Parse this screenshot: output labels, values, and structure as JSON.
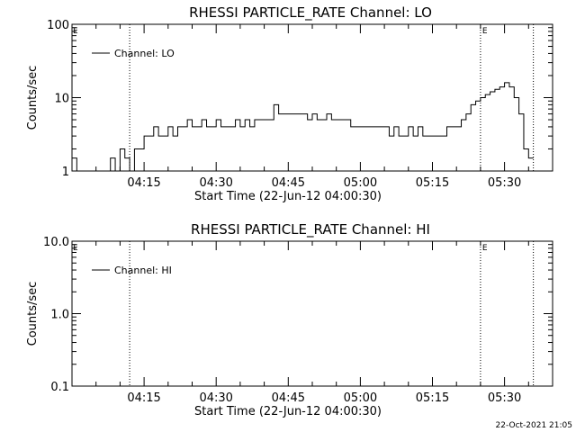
{
  "stamp": "22-Oct-2021 21:05",
  "chart_data": [
    {
      "type": "line",
      "title": "RHESSI PARTICLE_RATE Channel: LO",
      "xlabel": "Start Time (22-Jun-12 04:00:30)",
      "ylabel": "Counts/sec",
      "yscale": "log",
      "ylim": [
        1,
        100
      ],
      "y_ticks": [
        "100",
        "10",
        "1"
      ],
      "xlim": [
        "04:00",
        "05:40"
      ],
      "x_ticks": [
        "04:15",
        "04:30",
        "04:45",
        "05:00",
        "05:15",
        "05:30"
      ],
      "legend": {
        "position": "top-left",
        "label": "Channel: LO"
      },
      "markers": [
        {
          "time": "04:12",
          "label": ""
        },
        {
          "time": "05:25",
          "label": "E"
        },
        {
          "time": "05:36",
          "label": ""
        }
      ],
      "corner_labels": [
        "E"
      ],
      "series": [
        {
          "name": "Channel: LO",
          "x": [
            "04:00",
            "04:01",
            "04:02",
            "04:03",
            "04:04",
            "04:05",
            "04:06",
            "04:07",
            "04:08",
            "04:09",
            "04:10",
            "04:11",
            "04:12",
            "04:13",
            "04:14",
            "04:15",
            "04:16",
            "04:17",
            "04:18",
            "04:19",
            "04:20",
            "04:21",
            "04:22",
            "04:23",
            "04:24",
            "04:25",
            "04:26",
            "04:27",
            "04:28",
            "04:29",
            "04:30",
            "04:31",
            "04:32",
            "04:33",
            "04:34",
            "04:35",
            "04:36",
            "04:37",
            "04:38",
            "04:39",
            "04:40",
            "04:41",
            "04:42",
            "04:43",
            "04:44",
            "04:45",
            "04:46",
            "04:47",
            "04:48",
            "04:49",
            "04:50",
            "04:51",
            "04:52",
            "04:53",
            "04:54",
            "04:55",
            "04:56",
            "04:57",
            "04:58",
            "04:59",
            "05:00",
            "05:01",
            "05:02",
            "05:03",
            "05:04",
            "05:05",
            "05:06",
            "05:07",
            "05:08",
            "05:09",
            "05:10",
            "05:11",
            "05:12",
            "05:13",
            "05:14",
            "05:15",
            "05:16",
            "05:17",
            "05:18",
            "05:19",
            "05:20",
            "05:21",
            "05:22",
            "05:23",
            "05:24",
            "05:25",
            "05:26",
            "05:27",
            "05:28",
            "05:29",
            "05:30",
            "05:31",
            "05:32",
            "05:33",
            "05:34",
            "05:35"
          ],
          "y": [
            1.5,
            1,
            1,
            1,
            1,
            1,
            1,
            1,
            1.5,
            1,
            2,
            1.5,
            1,
            2,
            2,
            3,
            3,
            4,
            3,
            3,
            4,
            3,
            4,
            4,
            5,
            4,
            4,
            5,
            4,
            4,
            5,
            4,
            4,
            4,
            5,
            4,
            5,
            4,
            5,
            5,
            5,
            5,
            8,
            6,
            6,
            6,
            6,
            6,
            6,
            5,
            6,
            5,
            5,
            6,
            5,
            5,
            5,
            5,
            4,
            4,
            4,
            4,
            4,
            4,
            4,
            4,
            3,
            4,
            3,
            3,
            4,
            3,
            4,
            3,
            3,
            3,
            3,
            3,
            4,
            4,
            4,
            5,
            6,
            8,
            9,
            10,
            11,
            12,
            13,
            14,
            16,
            14,
            10,
            6,
            2,
            1.5
          ]
        }
      ]
    },
    {
      "type": "line",
      "title": "RHESSI PARTICLE_RATE Channel: HI",
      "xlabel": "Start Time (22-Jun-12 04:00:30)",
      "ylabel": "Counts/sec",
      "yscale": "log",
      "ylim": [
        0.1,
        10.0
      ],
      "y_ticks": [
        "10.0",
        "1.0",
        "0.1"
      ],
      "xlim": [
        "04:00",
        "05:40"
      ],
      "x_ticks": [
        "04:15",
        "04:30",
        "04:45",
        "05:00",
        "05:15",
        "05:30"
      ],
      "legend": {
        "position": "top-left",
        "label": "Channel: HI"
      },
      "markers": [
        {
          "time": "04:12",
          "label": ""
        },
        {
          "time": "05:25",
          "label": "E"
        },
        {
          "time": "05:36",
          "label": ""
        }
      ],
      "corner_labels": [
        "E"
      ],
      "series": [
        {
          "name": "Channel: HI",
          "x": [],
          "y": []
        }
      ]
    }
  ]
}
